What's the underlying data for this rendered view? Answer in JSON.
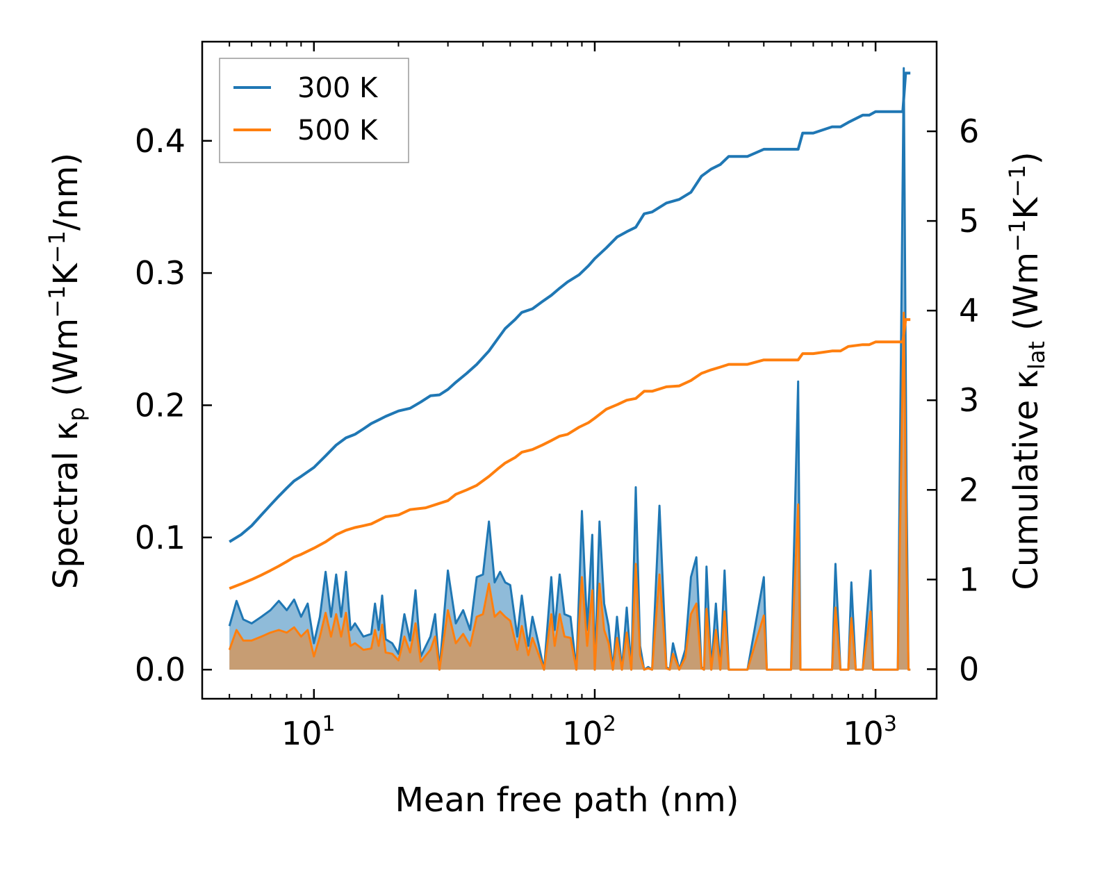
{
  "chart_data": {
    "type": "line",
    "xlabel": "Mean free path (nm)",
    "xscale": "log",
    "xlim": [
      4.0,
      1650
    ],
    "x_ticks": [
      {
        "value": 10,
        "base": "10",
        "exp": "1"
      },
      {
        "value": 100,
        "base": "10",
        "exp": "2"
      },
      {
        "value": 1000,
        "base": "10",
        "exp": "3"
      }
    ],
    "y_left": {
      "label": {
        "part1": "Spectral κ",
        "sub": "p",
        "part2": " (Wm",
        "sup1": "−1",
        "part3": "K",
        "sup2": "−1",
        "part4": "/nm)"
      },
      "ylim": [
        -0.022,
        0.475
      ],
      "ticks": [
        "0.0",
        "0.1",
        "0.2",
        "0.3",
        "0.4"
      ],
      "tick_values": [
        0.0,
        0.1,
        0.2,
        0.3,
        0.4
      ]
    },
    "y_right": {
      "label": {
        "part1": "Cumulative κ",
        "sub": "lat",
        "part2": " (Wm",
        "sup1": "−1",
        "part3": "K",
        "sup2": "−1",
        "part4": ")"
      },
      "ylim": [
        -0.33,
        7.0
      ],
      "ticks": [
        "0",
        "1",
        "2",
        "3",
        "4",
        "5",
        "6"
      ],
      "tick_values": [
        0,
        1,
        2,
        3,
        4,
        5,
        6
      ]
    },
    "legend": {
      "position": "top-left",
      "entries": [
        {
          "name": "300 K",
          "color": "#1f77b4"
        },
        {
          "name": "500 K",
          "color": "#ff7f0e"
        }
      ]
    },
    "series": [
      {
        "name": "300 K",
        "color": "#1f77b4",
        "cumulative": {
          "x": [
            5.0,
            5.5,
            6.0,
            6.5,
            7.0,
            7.5,
            8.0,
            8.5,
            9.0,
            10.0,
            11.0,
            12.0,
            13.0,
            14.0,
            15.0,
            16.0,
            17.0,
            18.0,
            20.0,
            22.0,
            24.0,
            26.0,
            28.0,
            30.0,
            32.0,
            35.0,
            38.0,
            42.0,
            45.0,
            48.0,
            52.0,
            55.0,
            60.0,
            65.0,
            70.0,
            75.0,
            80.0,
            88.0,
            95.0,
            100.0,
            110.0,
            120.0,
            130.0,
            140.0,
            150.0,
            160.0,
            180.0,
            200.0,
            220.0,
            240.0,
            260.0,
            280.0,
            300.0,
            350.0,
            400.0,
            450.0,
            530.0,
            550.0,
            600.0,
            700.0,
            750.0,
            800.0,
            900.0,
            950.0,
            1000.0,
            1100.0,
            1250.0,
            1280.0,
            1300.0,
            1330.0
          ],
          "y": [
            1.42,
            1.5,
            1.6,
            1.72,
            1.83,
            1.93,
            2.02,
            2.1,
            2.15,
            2.25,
            2.38,
            2.5,
            2.58,
            2.62,
            2.68,
            2.74,
            2.78,
            2.82,
            2.88,
            2.91,
            2.98,
            3.05,
            3.06,
            3.12,
            3.2,
            3.3,
            3.4,
            3.55,
            3.68,
            3.8,
            3.9,
            3.98,
            4.02,
            4.1,
            4.17,
            4.25,
            4.32,
            4.4,
            4.5,
            4.58,
            4.7,
            4.82,
            4.88,
            4.93,
            5.08,
            5.1,
            5.2,
            5.24,
            5.32,
            5.5,
            5.58,
            5.63,
            5.72,
            5.72,
            5.8,
            5.8,
            5.8,
            5.98,
            5.98,
            6.05,
            6.05,
            6.1,
            6.18,
            6.18,
            6.22,
            6.22,
            6.22,
            6.65,
            6.65,
            6.65
          ]
        },
        "spectral": {
          "x": [
            5.0,
            5.3,
            5.6,
            6.0,
            6.5,
            7.0,
            7.5,
            8.0,
            8.5,
            9.0,
            9.5,
            10.0,
            10.5,
            11.0,
            11.5,
            12.0,
            12.5,
            13.0,
            13.5,
            14.0,
            15.0,
            16.0,
            16.5,
            17.0,
            17.5,
            18.0,
            19.0,
            20.0,
            21.0,
            22.0,
            23.0,
            24.0,
            26.0,
            27.0,
            28.0,
            30.0,
            32.0,
            34.0,
            36.0,
            38.0,
            40.0,
            42.0,
            44.0,
            46.0,
            48.0,
            50.0,
            53.0,
            55.0,
            58.0,
            60.0,
            63.0,
            66.0,
            70.0,
            72.0,
            75.0,
            78.0,
            82.0,
            86.0,
            90.0,
            94.0,
            98.0,
            100.0,
            104.0,
            108.0,
            112.0,
            116.0,
            120.0,
            125.0,
            130.0,
            135.0,
            140.0,
            145.0,
            150.0,
            155.0,
            160.0,
            170.0,
            180.0,
            185.0,
            190.0,
            200.0,
            210.0,
            220.0,
            230.0,
            240.0,
            245.0,
            250.0,
            260.0,
            270.0,
            280.0,
            290.0,
            300.0,
            310.0,
            350.0,
            400.0,
            410.0,
            420.0,
            500.0,
            530.0,
            540.0,
            550.0,
            700.0,
            720.0,
            750.0,
            800.0,
            820.0,
            850.0,
            900.0,
            960.0,
            980.0,
            1000.0,
            1200.0,
            1260.0,
            1290.0,
            1310.0,
            1330.0
          ],
          "y": [
            0.033,
            0.052,
            0.038,
            0.035,
            0.04,
            0.045,
            0.052,
            0.045,
            0.053,
            0.04,
            0.05,
            0.02,
            0.04,
            0.074,
            0.04,
            0.072,
            0.04,
            0.074,
            0.03,
            0.035,
            0.025,
            0.027,
            0.05,
            0.03,
            0.056,
            0.023,
            0.02,
            0.012,
            0.042,
            0.022,
            0.06,
            0.01,
            0.025,
            0.042,
            0.0,
            0.075,
            0.035,
            0.045,
            0.03,
            0.07,
            0.072,
            0.112,
            0.066,
            0.074,
            0.066,
            0.064,
            0.025,
            0.056,
            0.018,
            0.04,
            0.02,
            0.0,
            0.07,
            0.03,
            0.072,
            0.042,
            0.04,
            0.0,
            0.12,
            0.03,
            0.102,
            0.0,
            0.112,
            0.05,
            0.033,
            0.0,
            0.04,
            0.0,
            0.047,
            0.0,
            0.138,
            0.018,
            0.0,
            0.002,
            0.0,
            0.124,
            0.002,
            0.0,
            0.02,
            0.0,
            0.015,
            0.07,
            0.085,
            0.002,
            0.0,
            0.078,
            0.0,
            0.05,
            0.0,
            0.075,
            0.0,
            0.0,
            0.0,
            0.07,
            0.0,
            0.0,
            0.0,
            0.218,
            0.0,
            0.0,
            0.0,
            0.08,
            0.0,
            0.0,
            0.066,
            0.0,
            0.0,
            0.075,
            0.0,
            0.0,
            0.0,
            0.455,
            0.13,
            0.0,
            0.0
          ]
        }
      },
      {
        "name": "500 K",
        "color": "#ff7f0e",
        "cumulative": {
          "x": [
            5.0,
            5.5,
            6.0,
            6.5,
            7.0,
            7.5,
            8.0,
            8.5,
            9.0,
            10.0,
            11.0,
            12.0,
            13.0,
            14.0,
            15.0,
            16.0,
            18.0,
            20.0,
            22.0,
            25.0,
            28.0,
            30.0,
            32.0,
            35.0,
            38.0,
            42.0,
            45.0,
            48.0,
            52.0,
            55.0,
            60.0,
            65.0,
            70.0,
            75.0,
            80.0,
            88.0,
            95.0,
            100.0,
            110.0,
            120.0,
            130.0,
            140.0,
            150.0,
            160.0,
            180.0,
            200.0,
            220.0,
            240.0,
            260.0,
            280.0,
            300.0,
            350.0,
            400.0,
            450.0,
            530.0,
            550.0,
            600.0,
            700.0,
            750.0,
            800.0,
            900.0,
            950.0,
            1000.0,
            1100.0,
            1250.0,
            1280.0,
            1300.0,
            1330.0
          ],
          "y": [
            0.9,
            0.95,
            1.0,
            1.05,
            1.1,
            1.15,
            1.2,
            1.25,
            1.28,
            1.35,
            1.42,
            1.5,
            1.55,
            1.58,
            1.6,
            1.62,
            1.7,
            1.72,
            1.78,
            1.8,
            1.85,
            1.88,
            1.95,
            2.0,
            2.05,
            2.15,
            2.23,
            2.3,
            2.36,
            2.42,
            2.45,
            2.5,
            2.55,
            2.6,
            2.62,
            2.7,
            2.75,
            2.8,
            2.9,
            2.95,
            3.0,
            3.02,
            3.1,
            3.1,
            3.15,
            3.16,
            3.22,
            3.3,
            3.34,
            3.37,
            3.4,
            3.4,
            3.45,
            3.45,
            3.45,
            3.52,
            3.52,
            3.55,
            3.55,
            3.6,
            3.62,
            3.62,
            3.65,
            3.65,
            3.65,
            3.9,
            3.9,
            3.9
          ]
        },
        "spectral": {
          "x": [
            5.0,
            5.3,
            5.6,
            6.0,
            6.5,
            7.0,
            7.5,
            8.0,
            8.5,
            9.0,
            9.5,
            10.0,
            10.5,
            11.0,
            11.5,
            12.0,
            12.5,
            13.0,
            13.5,
            14.0,
            15.0,
            16.0,
            16.5,
            17.0,
            17.5,
            18.0,
            19.0,
            20.0,
            21.0,
            22.0,
            23.0,
            24.0,
            26.0,
            27.0,
            28.0,
            30.0,
            32.0,
            34.0,
            36.0,
            38.0,
            40.0,
            42.0,
            44.0,
            46.0,
            48.0,
            50.0,
            53.0,
            55.0,
            58.0,
            60.0,
            63.0,
            66.0,
            70.0,
            72.0,
            75.0,
            78.0,
            82.0,
            86.0,
            90.0,
            94.0,
            98.0,
            100.0,
            104.0,
            108.0,
            112.0,
            116.0,
            120.0,
            125.0,
            130.0,
            135.0,
            140.0,
            145.0,
            150.0,
            155.0,
            160.0,
            170.0,
            180.0,
            185.0,
            190.0,
            200.0,
            210.0,
            220.0,
            230.0,
            240.0,
            245.0,
            250.0,
            260.0,
            270.0,
            280.0,
            290.0,
            300.0,
            310.0,
            350.0,
            400.0,
            410.0,
            420.0,
            500.0,
            530.0,
            540.0,
            550.0,
            700.0,
            720.0,
            750.0,
            800.0,
            820.0,
            850.0,
            900.0,
            960.0,
            980.0,
            1000.0,
            1200.0,
            1260.0,
            1290.0,
            1310.0,
            1330.0
          ],
          "y": [
            0.015,
            0.03,
            0.022,
            0.022,
            0.025,
            0.028,
            0.03,
            0.028,
            0.032,
            0.025,
            0.03,
            0.01,
            0.025,
            0.043,
            0.025,
            0.042,
            0.025,
            0.043,
            0.018,
            0.02,
            0.015,
            0.016,
            0.03,
            0.018,
            0.034,
            0.013,
            0.012,
            0.007,
            0.025,
            0.013,
            0.035,
            0.006,
            0.015,
            0.025,
            0.0,
            0.045,
            0.02,
            0.027,
            0.018,
            0.04,
            0.042,
            0.065,
            0.04,
            0.044,
            0.04,
            0.037,
            0.015,
            0.033,
            0.011,
            0.024,
            0.012,
            0.0,
            0.042,
            0.018,
            0.042,
            0.025,
            0.024,
            0.0,
            0.07,
            0.018,
            0.06,
            0.0,
            0.065,
            0.03,
            0.02,
            0.0,
            0.024,
            0.0,
            0.028,
            0.0,
            0.08,
            0.011,
            0.0,
            0.001,
            0.0,
            0.072,
            0.001,
            0.0,
            0.012,
            0.0,
            0.009,
            0.042,
            0.05,
            0.001,
            0.0,
            0.046,
            0.0,
            0.03,
            0.0,
            0.044,
            0.0,
            0.0,
            0.0,
            0.041,
            0.0,
            0.0,
            0.0,
            0.125,
            0.0,
            0.0,
            0.0,
            0.047,
            0.0,
            0.0,
            0.039,
            0.0,
            0.0,
            0.044,
            0.0,
            0.0,
            0.0,
            0.27,
            0.078,
            0.0,
            0.0
          ]
        }
      }
    ]
  }
}
